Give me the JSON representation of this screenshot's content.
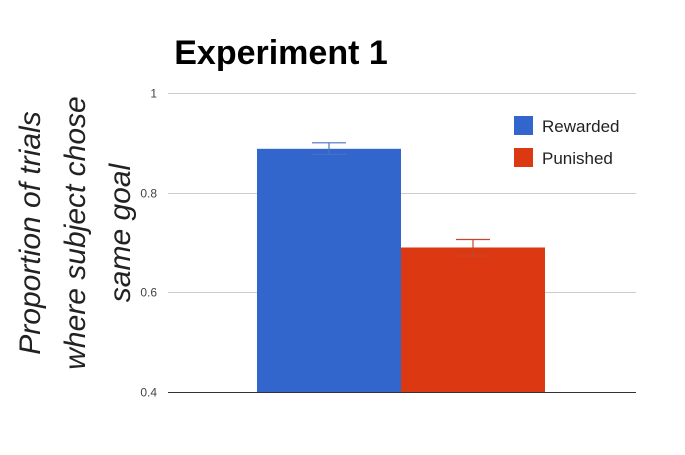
{
  "chart_data": {
    "type": "bar",
    "title": "Experiment 1",
    "ylabel_lines": [
      "Proportion of trials",
      "where subject chose",
      "same goal"
    ],
    "xlabel": "",
    "ylim": [
      0.4,
      1
    ],
    "yticks": [
      {
        "value": 1,
        "label": "1"
      },
      {
        "value": 0.8,
        "label": "0.8"
      },
      {
        "value": 0.6,
        "label": "0.6"
      },
      {
        "value": 0.4,
        "label": "0.4"
      }
    ],
    "grid": true,
    "legend_position": "top-right",
    "series": [
      {
        "name": "Rewarded",
        "value": 0.888,
        "error_low": 0.877,
        "error_high": 0.9,
        "color": "#3366cc"
      },
      {
        "name": "Punished",
        "value": 0.69,
        "error_low": 0.673,
        "error_high": 0.706,
        "color": "#dc3912"
      }
    ]
  }
}
